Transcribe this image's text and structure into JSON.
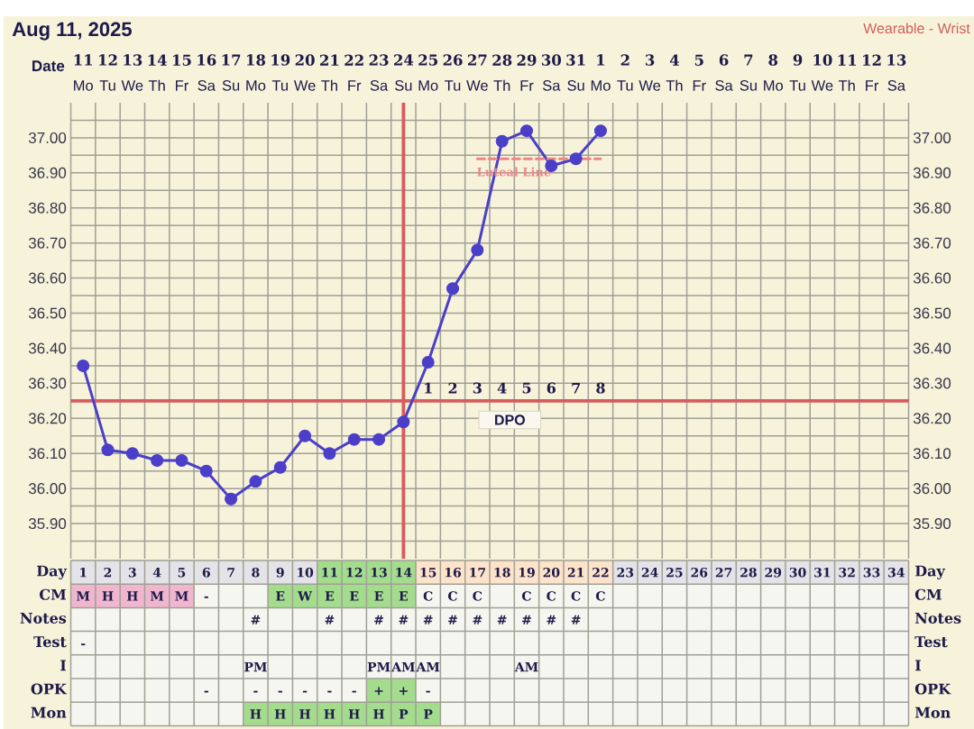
{
  "chart_data": [
    {
      "type": "line",
      "title": "Aug 11, 2025",
      "subtitle": "Wearable - Wrist",
      "xlabel": "Date",
      "x": [
        "2025-08-11",
        "2025-08-12",
        "2025-08-13",
        "2025-08-14",
        "2025-08-15",
        "2025-08-16",
        "2025-08-17",
        "2025-08-18",
        "2025-08-19",
        "2025-08-20",
        "2025-08-21",
        "2025-08-22",
        "2025-08-23",
        "2025-08-24",
        "2025-08-25",
        "2025-08-26",
        "2025-08-27",
        "2025-08-28",
        "2025-08-29",
        "2025-08-30",
        "2025-08-31",
        "2025-09-01"
      ],
      "xlim": [
        "2025-08-10T12:00",
        "2025-09-13T12:00"
      ],
      "xticks": [
        {
          "value": "2025-08-11",
          "label": "**11** Mo"
        },
        {
          "value": "2025-08-12",
          "label": "**12** Tu"
        },
        {
          "value": "2025-08-13",
          "label": "**13** We"
        },
        {
          "value": "2025-08-14",
          "label": "**14** Th"
        },
        {
          "value": "2025-08-15",
          "label": "**15** Fr"
        },
        {
          "value": "2025-08-16",
          "label": "**16** Sa"
        },
        {
          "value": "2025-08-17",
          "label": "**17** Su"
        },
        {
          "value": "2025-08-18",
          "label": "**18** Mo"
        },
        {
          "value": "2025-08-19",
          "label": "**19** Tu"
        },
        {
          "value": "2025-08-20",
          "label": "**20** We"
        },
        {
          "value": "2025-08-21",
          "label": "**21** Th"
        },
        {
          "value": "2025-08-22",
          "label": "**22** Fr"
        },
        {
          "value": "2025-08-23",
          "label": "**23** Sa"
        },
        {
          "value": "2025-08-24",
          "label": "**24** Su"
        },
        {
          "value": "2025-08-25",
          "label": "**25** Mo"
        },
        {
          "value": "2025-08-26",
          "label": "**26** Tu"
        },
        {
          "value": "2025-08-27",
          "label": "**27** We"
        },
        {
          "value": "2025-08-28",
          "label": "**28** Th"
        },
        {
          "value": "2025-08-29",
          "label": "**29** Fr"
        },
        {
          "value": "2025-08-30",
          "label": "**30** Sa"
        },
        {
          "value": "2025-08-31",
          "label": "**31** Su"
        },
        {
          "value": "2025-09-01",
          "label": "**1** Mo"
        },
        {
          "value": "2025-09-02",
          "label": "**2** Tu"
        },
        {
          "value": "2025-09-03",
          "label": "**3** We"
        },
        {
          "value": "2025-09-04",
          "label": "**4** Th"
        },
        {
          "value": "2025-09-05",
          "label": "**5** Fr"
        },
        {
          "value": "2025-09-06",
          "label": "**6** Sa"
        },
        {
          "value": "2025-09-07",
          "label": "**7** Su"
        },
        {
          "value": "2025-09-08",
          "label": "**8** Mo"
        },
        {
          "value": "2025-09-09",
          "label": "**9** Tu"
        },
        {
          "value": "2025-09-10",
          "label": "**10** We"
        },
        {
          "value": "2025-09-11",
          "label": "**11** Th"
        },
        {
          "value": "2025-09-12",
          "label": "**12** Fr"
        },
        {
          "value": "2025-09-13",
          "label": "**13** Sa"
        }
      ],
      "ylim": [
        35.8,
        37.1
      ],
      "yticks": [
        {
          "value": 35.85,
          "label": null
        },
        {
          "value": 35.9,
          "label": "35.90"
        },
        {
          "value": 35.95,
          "label": null
        },
        {
          "value": 36.0,
          "label": "36.00"
        },
        {
          "value": 36.05,
          "label": null
        },
        {
          "value": 36.1,
          "label": "36.10"
        },
        {
          "value": 36.15,
          "label": null
        },
        {
          "value": 36.2,
          "label": "36.20"
        },
        {
          "value": 36.3,
          "label": "36.30"
        },
        {
          "value": 36.35,
          "label": null
        },
        {
          "value": 36.4,
          "label": "36.40"
        },
        {
          "value": 36.45,
          "label": null
        },
        {
          "value": 36.5,
          "label": "36.50"
        },
        {
          "value": 36.55,
          "label": null
        },
        {
          "value": 36.6,
          "label": "36.60"
        },
        {
          "value": 36.65,
          "label": null
        },
        {
          "value": 36.7,
          "label": "36.70"
        },
        {
          "value": 36.75,
          "label": null
        },
        {
          "value": 36.8,
          "label": "36.80"
        },
        {
          "value": 36.85,
          "label": null
        },
        {
          "value": 36.9,
          "label": "36.90"
        },
        {
          "value": 36.95,
          "label": null
        },
        {
          "value": 37.0,
          "label": "37.00"
        },
        {
          "value": 37.05,
          "label": null
        }
      ],
      "y2lim": [
        35.8,
        37.1
      ],
      "y2ticks": [
        {
          "value": 35.85,
          "label": null
        },
        {
          "value": 35.9,
          "label": "35.90"
        },
        {
          "value": 35.95,
          "label": null
        },
        {
          "value": 36.0,
          "label": "36.00"
        },
        {
          "value": 36.05,
          "label": null
        },
        {
          "value": 36.1,
          "label": "36.10"
        },
        {
          "value": 36.15,
          "label": null
        },
        {
          "value": 36.2,
          "label": "36.20"
        },
        {
          "value": 36.3,
          "label": "36.30"
        },
        {
          "value": 36.35,
          "label": null
        },
        {
          "value": 36.4,
          "label": "36.40"
        },
        {
          "value": 36.45,
          "label": null
        },
        {
          "value": 36.5,
          "label": "36.50"
        },
        {
          "value": 36.55,
          "label": null
        },
        {
          "value": 36.6,
          "label": "36.60"
        },
        {
          "value": 36.65,
          "label": null
        },
        {
          "value": 36.7,
          "label": "36.70"
        },
        {
          "value": 36.75,
          "label": null
        },
        {
          "value": 36.8,
          "label": "36.80"
        },
        {
          "value": 36.85,
          "label": null
        },
        {
          "value": 36.9,
          "label": "36.90"
        },
        {
          "value": 36.95,
          "label": null
        },
        {
          "value": 37.0,
          "label": "37.00"
        },
        {
          "value": 37.05,
          "label": null
        }
      ],
      "grid": true,
      "marker": "circle",
      "series": [
        {
          "color": "#4b3fc9",
          "values": [
            36.35,
            36.11,
            36.1,
            36.08,
            36.08,
            36.05,
            35.97,
            36.02,
            36.06,
            36.15,
            36.1,
            36.14,
            36.14,
            36.19,
            36.36,
            36.57,
            36.68,
            36.99,
            37.02,
            36.92,
            36.94,
            37.02
          ]
        },
        {
          "name": "Luteal Line",
          "type": "line",
          "color": "#ee8585",
          "x": [
            "2025-08-27",
            "2025-09-01"
          ],
          "values": [
            36.94,
            36.94
          ],
          "marker": "none",
          "line_style": "dashed"
        }
      ],
      "ref_lines": [
        {
          "axis": "x",
          "value": "2025-08-24",
          "color": "#d85c5c"
        },
        {
          "axis": "y",
          "value": 36.25,
          "label": "DPO",
          "color": "#d85c5c"
        }
      ],
      "annotations": [
        "1",
        "2",
        "3",
        "4",
        "5",
        "6",
        "7",
        "8"
      ]
    },
    {
      "type": "heatmap",
      "tick_labels": "y",
      "categories": [
        null,
        null,
        null,
        null,
        null,
        null,
        null,
        null,
        null,
        null,
        null,
        null,
        null,
        null,
        null,
        null,
        null,
        null,
        null,
        null,
        null,
        null,
        null,
        null,
        null,
        null,
        null,
        null,
        null,
        null,
        null,
        null,
        null,
        null
      ],
      "y_categories": [
        "Day",
        "CM",
        "Notes",
        "Test",
        "I",
        "OPK",
        "Mon"
      ],
      "y2_categories": [
        "Day",
        "CM",
        "Notes",
        "Test",
        "I",
        "OPK",
        "Mon"
      ],
      "cells": [
        [
          null,
          null,
          null,
          null,
          null,
          null,
          null,
          null,
          null,
          null,
          null,
          null,
          null,
          null,
          null,
          null,
          null,
          null,
          null,
          null,
          null,
          null,
          null,
          null,
          null,
          null,
          null,
          null,
          null,
          null,
          null,
          null,
          null,
          null
        ],
        [
          null,
          null,
          null,
          null,
          null,
          null,
          null,
          null,
          null,
          null,
          null,
          null,
          null,
          null,
          null,
          null,
          null,
          null,
          null,
          null,
          null,
          null,
          null,
          null,
          null,
          null,
          null,
          null,
          null,
          null,
          null,
          null,
          null,
          null
        ],
        [
          null,
          null,
          null,
          null,
          null,
          null,
          null,
          null,
          null,
          null,
          null,
          null,
          null,
          null,
          null,
          null,
          null,
          null,
          null,
          null,
          null,
          null,
          null,
          null,
          null,
          null,
          null,
          null,
          null,
          null,
          null,
          null,
          null,
          null
        ],
        [
          null,
          null,
          null,
          null,
          null,
          null,
          null,
          null,
          null,
          null,
          null,
          null,
          null,
          null,
          null,
          null,
          null,
          null,
          null,
          null,
          null,
          null,
          null,
          null,
          null,
          null,
          null,
          null,
          null,
          null,
          null,
          null,
          null,
          null
        ],
        [
          null,
          null,
          null,
          null,
          null,
          null,
          null,
          null,
          null,
          null,
          null,
          null,
          null,
          null,
          null,
          null,
          null,
          null,
          null,
          null,
          null,
          null,
          null,
          null,
          null,
          null,
          null,
          null,
          null,
          null,
          null,
          null,
          null,
          null
        ],
        [
          null,
          null,
          null,
          null,
          null,
          null,
          null,
          null,
          null,
          null,
          null,
          null,
          null,
          null,
          null,
          null,
          null,
          null,
          null,
          null,
          null,
          null,
          null,
          null,
          null,
          null,
          null,
          null,
          null,
          null,
          null,
          null,
          null,
          null
        ],
        [
          null,
          null,
          null,
          null,
          null,
          null,
          null,
          null,
          null,
          null,
          null,
          null,
          null,
          null,
          null,
          null,
          null,
          null,
          null,
          null,
          null,
          null,
          null,
          null,
          null,
          null,
          null,
          null,
          null,
          null,
          null,
          null,
          null,
          null
        ]
      ],
      "cell_labels": [
        [
          "1",
          "2",
          "3",
          "4",
          "5",
          "6",
          "7",
          "8",
          "9",
          "10",
          "11",
          "12",
          "13",
          "14",
          "15",
          "16",
          "17",
          "18",
          "19",
          "20",
          "21",
          "22",
          "23",
          "24",
          "25",
          "26",
          "27",
          "28",
          "29",
          "30",
          "31",
          "32",
          "33",
          "34"
        ],
        [
          "M",
          "H",
          "H",
          "M",
          "M",
          "-",
          null,
          null,
          "E",
          "W",
          "E",
          "E",
          "E",
          "E",
          "C",
          "C",
          "C",
          null,
          "C",
          "C",
          "C",
          "C",
          null,
          null,
          null,
          null,
          null,
          null,
          null,
          null,
          null,
          null,
          null,
          null
        ],
        [
          null,
          null,
          null,
          null,
          null,
          null,
          null,
          "#",
          null,
          null,
          "#",
          null,
          "#",
          "#",
          "#",
          "#",
          "#",
          "#",
          "#",
          "#",
          "#",
          null,
          null,
          null,
          null,
          null,
          null,
          null,
          null,
          null,
          null,
          null,
          null,
          null
        ],
        [
          "-",
          null,
          null,
          null,
          null,
          null,
          null,
          null,
          null,
          null,
          null,
          null,
          null,
          null,
          null,
          null,
          null,
          null,
          null,
          null,
          null,
          null,
          null,
          null,
          null,
          null,
          null,
          null,
          null,
          null,
          null,
          null,
          null,
          null
        ],
        [
          null,
          null,
          null,
          null,
          null,
          null,
          null,
          "PM",
          null,
          null,
          null,
          null,
          "PM",
          "AM",
          "AM",
          null,
          null,
          null,
          "AM",
          null,
          null,
          null,
          null,
          null,
          null,
          null,
          null,
          null,
          null,
          null,
          null,
          null,
          null,
          null
        ],
        [
          null,
          null,
          null,
          null,
          null,
          "-",
          null,
          "-",
          "-",
          "-",
          "-",
          "-",
          "+",
          "+",
          "-",
          null,
          null,
          null,
          null,
          null,
          null,
          null,
          null,
          null,
          null,
          null,
          null,
          null,
          null,
          null,
          null,
          null,
          null,
          null
        ],
        [
          null,
          null,
          null,
          null,
          null,
          null,
          null,
          "H",
          "H",
          "H",
          "H",
          "H",
          "H",
          "P",
          "P",
          null,
          null,
          null,
          null,
          null,
          null,
          null,
          null,
          null,
          null,
          null,
          null,
          null,
          null,
          null,
          null,
          null,
          null,
          null
        ]
      ],
      "colors": [
        [
          "#e3e3e8",
          "#e3e3e8",
          "#e3e3e8",
          "#e3e3e8",
          "#e3e3e8",
          "#e3e3e8",
          "#e3e3e8",
          "#e3e3e8",
          "#e3e3e8",
          "#e3e3e8",
          "#a4dc8e",
          "#a4dc8e",
          "#a4dc8e",
          "#a4dc8e",
          "#fde3c9",
          "#fde3c9",
          "#fde3c9",
          "#fde3c9",
          "#fde3c9",
          "#fde3c9",
          "#fde3c9",
          "#fde3c9",
          "#e3e3e8",
          "#e3e3e8",
          "#e3e3e8",
          "#e3e3e8",
          "#e3e3e8",
          "#e3e3e8",
          "#e3e3e8",
          "#e3e3e8",
          "#e3e3e8",
          "#e3e3e8",
          "#e3e3e8",
          "#e3e3e8"
        ],
        [
          "#efb6cd",
          "#efb6cd",
          "#efb6cd",
          "#efb6cd",
          "#efb6cd",
          null,
          null,
          null,
          "#a4dc8e",
          "#a4dc8e",
          "#a4dc8e",
          "#a4dc8e",
          "#a4dc8e",
          "#a4dc8e",
          null,
          null,
          null,
          null,
          null,
          null,
          null,
          null,
          null,
          null,
          null,
          null,
          null,
          null,
          null,
          null,
          null,
          null,
          null,
          null
        ],
        [
          null,
          null,
          null,
          null,
          null,
          null,
          null,
          null,
          null,
          null,
          null,
          null,
          null,
          null,
          null,
          null,
          null,
          null,
          null,
          null,
          null,
          null,
          null,
          null,
          null,
          null,
          null,
          null,
          null,
          null,
          null,
          null,
          null,
          null
        ],
        [
          null,
          null,
          null,
          null,
          null,
          null,
          null,
          null,
          null,
          null,
          null,
          null,
          null,
          null,
          null,
          null,
          null,
          null,
          null,
          null,
          null,
          null,
          null,
          null,
          null,
          null,
          null,
          null,
          null,
          null,
          null,
          null,
          null,
          null
        ],
        [
          null,
          null,
          null,
          null,
          null,
          null,
          null,
          null,
          null,
          null,
          null,
          null,
          null,
          null,
          null,
          null,
          null,
          null,
          null,
          null,
          null,
          null,
          null,
          null,
          null,
          null,
          null,
          null,
          null,
          null,
          null,
          null,
          null,
          null
        ],
        [
          null,
          null,
          null,
          null,
          null,
          null,
          null,
          null,
          null,
          null,
          null,
          null,
          "#a4dc8e",
          "#a4dc8e",
          null,
          null,
          null,
          null,
          null,
          null,
          null,
          null,
          null,
          null,
          null,
          null,
          null,
          null,
          null,
          null,
          null,
          null,
          null,
          null
        ],
        [
          null,
          null,
          null,
          null,
          null,
          null,
          null,
          "#a4dc8e",
          "#a4dc8e",
          "#a4dc8e",
          "#a4dc8e",
          "#a4dc8e",
          "#a4dc8e",
          "#a4dc8e",
          "#a4dc8e",
          null,
          null,
          null,
          null,
          null,
          null,
          null,
          null,
          null,
          null,
          null,
          null,
          null,
          null,
          null,
          null,
          null,
          null,
          null
        ]
      ]
    }
  ]
}
